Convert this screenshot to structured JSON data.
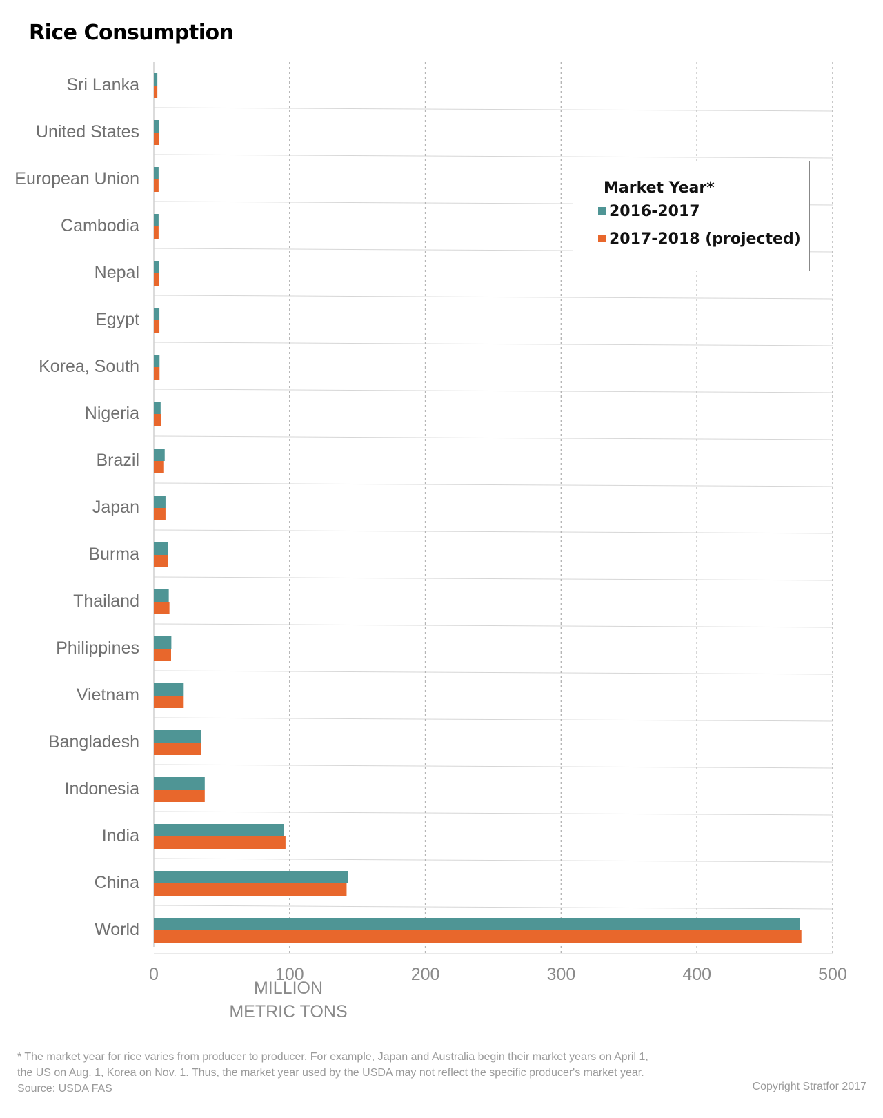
{
  "chart_data": {
    "type": "bar",
    "orientation": "horizontal",
    "title": "Rice Consumption",
    "categories": [
      "Sri Lanka",
      "United States",
      "European Union",
      "Cambodia",
      "Nepal",
      "Egypt",
      "Korea, South",
      "Nigeria",
      "Brazil",
      "Japan",
      "Burma",
      "Thailand",
      "Philippines",
      "Vietnam",
      "Bangladesh",
      "Indonesia",
      "India",
      "China",
      "World"
    ],
    "series": [
      {
        "name": "2016-2017",
        "color": "#4f9595",
        "values": [
          2.6,
          4.0,
          3.5,
          3.5,
          3.6,
          4.1,
          4.2,
          5.0,
          8.0,
          8.6,
          10.3,
          11.0,
          12.9,
          22.0,
          35.0,
          37.5,
          96.0,
          143.0,
          476.0
        ]
      },
      {
        "name": "2017-2018 (projected)",
        "color": "#e8672c",
        "values": [
          2.6,
          3.7,
          3.5,
          3.5,
          3.6,
          4.1,
          4.2,
          5.1,
          7.5,
          8.6,
          10.4,
          11.5,
          12.7,
          22.0,
          35.0,
          37.5,
          97.0,
          142.0,
          477.0
        ]
      }
    ],
    "xlabel": "MILLION\nMETRIC TONS",
    "xlim": [
      0,
      500
    ],
    "xticks": [
      0,
      100,
      200,
      300,
      400,
      500
    ],
    "grid": true,
    "legend_position": "top-right"
  },
  "axis_title_lines": [
    "MILLION",
    "METRIC TONS"
  ],
  "legend": {
    "title": "Market Year*",
    "items": [
      "2016-2017",
      "2017-2018 (projected)"
    ]
  },
  "footnote": {
    "lines": [
      "* The market year for rice varies from producer to producer. For example, Japan and Australia begin their market years on April 1,",
      "the US on Aug. 1, Korea on Nov. 1. Thus, the market year used by the USDA may not reflect the specific producer's market year.",
      "Source: USDA FAS"
    ]
  },
  "copyright": "Copyright Stratfor 2017"
}
